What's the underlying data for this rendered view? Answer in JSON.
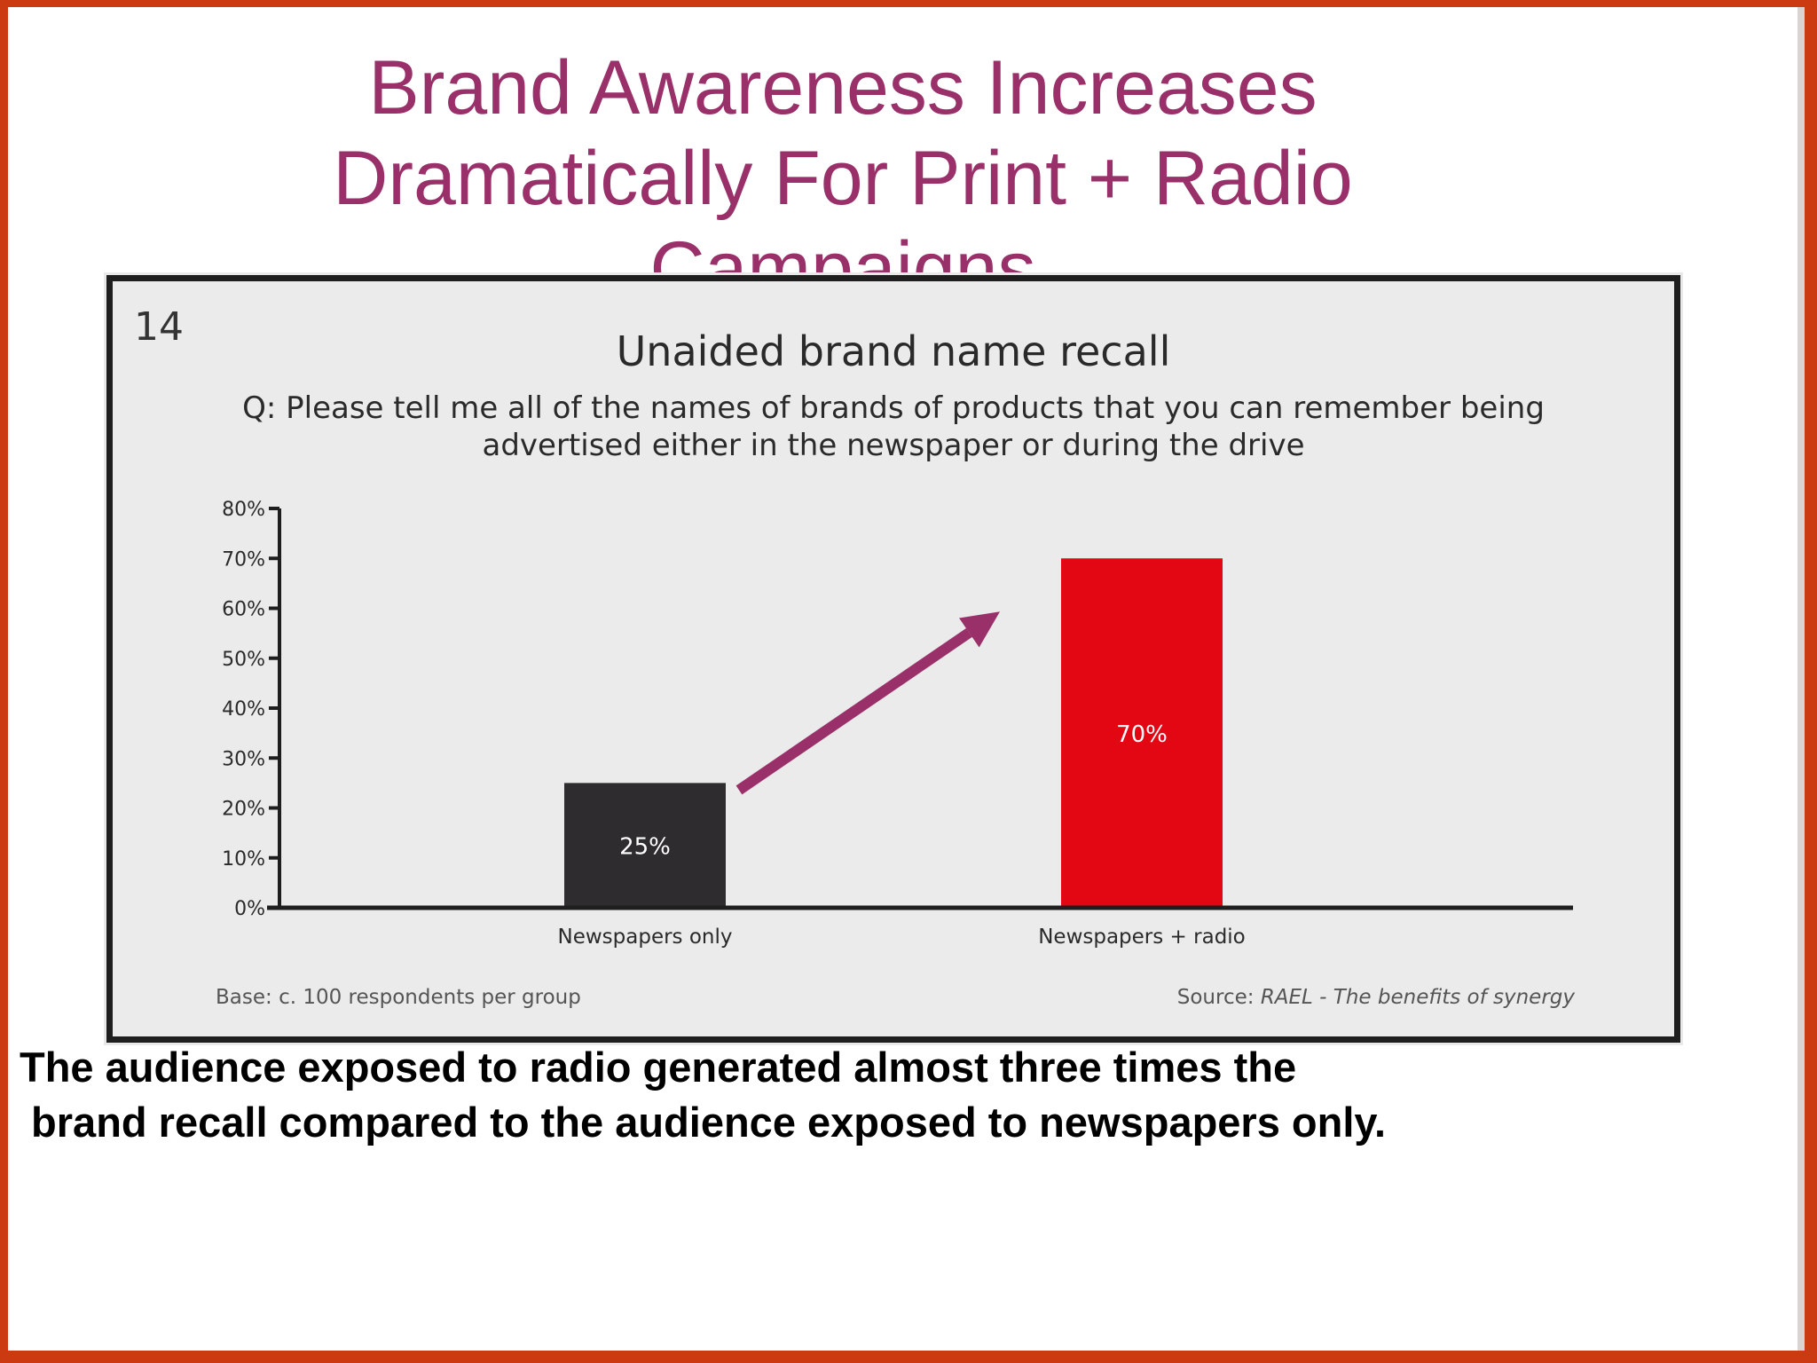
{
  "slide": {
    "title": "Brand Awareness Increases Dramatically For Print + Radio Campaigns",
    "caption_line1": "The audience exposed to radio generated almost three times the",
    "caption_line2": " brand recall compared to the audience exposed to newspapers only."
  },
  "figure": {
    "number": "14",
    "base_note": "Base: c. 100 respondents per group",
    "source_prefix": "Source: ",
    "source_title": "RAEL - The benefits of synergy"
  },
  "colors": {
    "title": "#9a3069",
    "frame": "#cc3a12",
    "arrow": "#9a3069",
    "bar_newspapers": "#2e2c2f",
    "bar_radio": "#e30613"
  },
  "chart_data": {
    "type": "bar",
    "title": "Unaided brand name recall",
    "subtitle": "Q: Please tell me all of the names of brands of products that you can remember being advertised either in the newspaper or during the drive",
    "categories": [
      "Newspapers only",
      "Newspapers + radio"
    ],
    "values": [
      25,
      70
    ],
    "data_labels": [
      "25%",
      "70%"
    ],
    "bar_colors": [
      "#2e2c2f",
      "#e30613"
    ],
    "ylim": [
      0,
      80
    ],
    "yticks": [
      0,
      10,
      20,
      30,
      40,
      50,
      60,
      70,
      80
    ],
    "ytick_labels": [
      "0%",
      "10%",
      "20%",
      "30%",
      "40%",
      "50%",
      "60%",
      "70%",
      "80%"
    ],
    "xlabel": "",
    "ylabel": "",
    "grid": false,
    "annotations": [
      {
        "type": "arrow",
        "from_category": 0,
        "to_category": 1,
        "color": "#9a3069"
      }
    ]
  }
}
